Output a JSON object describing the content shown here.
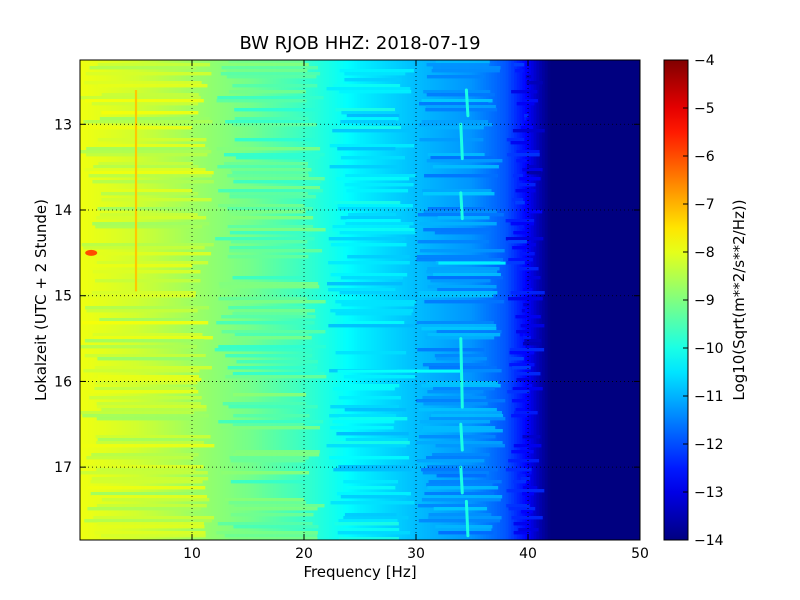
{
  "chart_data": {
    "type": "heatmap",
    "title": "BW RJOB HHZ: 2018-07-19",
    "xlabel": "Frequency [Hz]",
    "ylabel": "Lokalzeit (UTC + 2 Stunde)",
    "colorbar_label": "Log10(Sqrt(m**2/s**2/Hz))",
    "xlim": [
      0,
      50
    ],
    "ylim": [
      12.25,
      17.85
    ],
    "y_inverted": true,
    "x_ticks": [
      10,
      20,
      30,
      40,
      50
    ],
    "x_tick_labels": [
      "10",
      "20",
      "30",
      "40",
      "50"
    ],
    "y_ticks": [
      13,
      14,
      15,
      16,
      17
    ],
    "y_tick_labels": [
      "13",
      "14",
      "15",
      "16",
      "17"
    ],
    "colorbar_range": [
      -14,
      -4
    ],
    "colorbar_ticks": [
      -4,
      -5,
      -6,
      -7,
      -8,
      -9,
      -10,
      -11,
      -12,
      -13,
      -14
    ],
    "colorbar_tick_labels": [
      "−4",
      "−5",
      "−6",
      "−7",
      "−8",
      "−9",
      "−10",
      "−11",
      "−12",
      "−13",
      "−14"
    ],
    "colormap": "jet",
    "grid": true,
    "grid_style": "dotted",
    "spectrum_profile": [
      {
        "freq": 0.0,
        "value": -7.9
      },
      {
        "freq": 5.0,
        "value": -8.2
      },
      {
        "freq": 10.0,
        "value": -8.7
      },
      {
        "freq": 15.0,
        "value": -9.1
      },
      {
        "freq": 20.0,
        "value": -9.7
      },
      {
        "freq": 25.0,
        "value": -10.4
      },
      {
        "freq": 30.0,
        "value": -10.9
      },
      {
        "freq": 35.0,
        "value": -11.3
      },
      {
        "freq": 38.0,
        "value": -11.9
      },
      {
        "freq": 40.0,
        "value": -12.8
      },
      {
        "freq": 41.0,
        "value": -13.5
      },
      {
        "freq": 42.0,
        "value": -14.0
      },
      {
        "freq": 50.0,
        "value": -14.0
      }
    ],
    "features": [
      {
        "kind": "line",
        "freq": 5.0,
        "t_start": 12.6,
        "t_end": 14.95,
        "value": -7.2
      },
      {
        "kind": "spot",
        "freq": 1.0,
        "t": 14.5,
        "value": -6.0
      },
      {
        "kind": "tone",
        "freq": 34.5,
        "t_start": 12.6,
        "t_end": 12.9,
        "value": -10.0
      },
      {
        "kind": "tone",
        "freq": 34.0,
        "t_start": 13.0,
        "t_end": 13.4,
        "value": -10.0
      },
      {
        "kind": "tone",
        "freq": 34.0,
        "t_start": 13.8,
        "t_end": 14.1,
        "value": -10.0
      },
      {
        "kind": "tone",
        "freq": 34.0,
        "t_start": 15.5,
        "t_end": 16.3,
        "value": -10.0
      },
      {
        "kind": "tone",
        "freq": 34.0,
        "t_start": 16.5,
        "t_end": 16.8,
        "value": -10.0
      },
      {
        "kind": "tone",
        "freq": 34.0,
        "t_start": 17.0,
        "t_end": 17.3,
        "value": -10.0
      },
      {
        "kind": "tone",
        "freq": 34.5,
        "t_start": 17.4,
        "t_end": 17.8,
        "value": -10.0
      },
      {
        "kind": "band",
        "freq_start": 23.0,
        "freq_end": 34.0,
        "t": 15.88,
        "value": -10.2
      },
      {
        "kind": "band",
        "freq_start": 32.0,
        "freq_end": 38.0,
        "t": 14.62,
        "value": -10.4
      }
    ]
  }
}
